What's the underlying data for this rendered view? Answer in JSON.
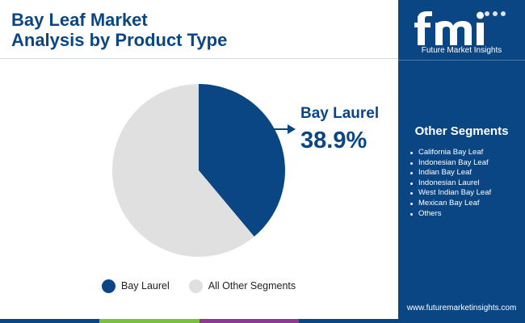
{
  "header": {
    "title_line1": "Bay Leaf Market",
    "title_line2": "Analysis by Product Type"
  },
  "colors": {
    "primary": "#0b4684",
    "other": "#e0e0e0",
    "bar": [
      "#0b4684",
      "#7bbf3b",
      "#8b3a8f",
      "#0b4684"
    ]
  },
  "chart_data": {
    "type": "pie",
    "title": "Bay Leaf Market Analysis by Product Type",
    "slices": [
      {
        "label": "Bay Laurel",
        "value": 38.9,
        "color": "#0b4684"
      },
      {
        "label": "All Other Segments",
        "value": 61.1,
        "color": "#e0e0e0"
      }
    ],
    "callout": {
      "label": "Bay Laurel",
      "value_text": "38.9%"
    },
    "legend": {
      "placement": "bottom",
      "entries": [
        "Bay Laurel",
        "All Other Segments"
      ]
    }
  },
  "sidebar": {
    "brand_caption": "Future Market Insights",
    "segments_title": "Other Segments",
    "segments": [
      "California Bay Leaf",
      "Indonesian Bay Leaf",
      "Indian Bay Leaf",
      "Indonesian Laurel",
      "West Indian Bay Leaf",
      "Mexican Bay Leaf",
      "Others"
    ],
    "website": "www.futuremarketinsights.com"
  }
}
